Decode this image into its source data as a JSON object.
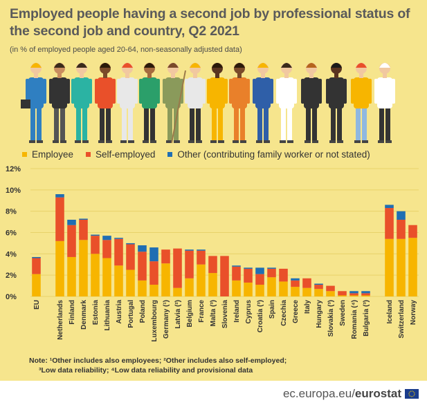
{
  "title": "Employed people having a second job by professional status of the second job and country, Q2 2021",
  "subtitle": "(in % of employed people aged 20-64, non-seasonally adjusted data)",
  "legend": [
    {
      "label": "Employee",
      "color": "#f7b500"
    },
    {
      "label": "Self-employed",
      "color": "#e9502a"
    },
    {
      "label": "Other (contributing family worker or not stated)",
      "color": "#1f6eb3"
    }
  ],
  "notes": {
    "line1": "Note:  ¹Other includes also employees; ²Other includes also self-employed;",
    "line2": "³Low data reliability; ⁴Low data reliability and provisional data"
  },
  "footer": {
    "site": "ec.europa.eu/",
    "brand": "eurostat"
  },
  "chart_data": {
    "type": "bar",
    "stacked": true,
    "categories": [
      "EU",
      "Netherlands",
      "Finland",
      "Denmark",
      "Estonia",
      "Lithuania",
      "Austria",
      "Portugal",
      "Poland",
      "Luxembourg",
      "Germany (¹)",
      "Latvia (²)",
      "Belgium",
      "France",
      "Malta (³)",
      "Slovenia",
      "Ireland",
      "Cyprus",
      "Croatia (³)",
      "Spain",
      "Czechia",
      "Greece",
      "Italy",
      "Hungary",
      "Slovakia (³)",
      "Sweden",
      "Romania (⁴)",
      "Bulgaria (³)",
      "Iceland",
      "Switzerland",
      "Norway"
    ],
    "groups_gap_after": [
      "EU",
      "Bulgaria (³)"
    ],
    "series": [
      {
        "name": "Employee",
        "color": "#f7b500",
        "values": [
          2.1,
          5.2,
          3.7,
          5.3,
          4.0,
          3.6,
          2.9,
          2.5,
          1.5,
          1.1,
          3.1,
          0.8,
          1.7,
          3.0,
          2.2,
          0.0,
          1.5,
          1.3,
          1.1,
          1.8,
          1.4,
          0.9,
          0.8,
          0.7,
          0.5,
          0.1,
          0.1,
          0.1,
          5.4,
          5.4,
          5.5
        ]
      },
      {
        "name": "Self-employed",
        "color": "#e9502a",
        "values": [
          1.5,
          4.1,
          3.0,
          1.9,
          1.7,
          1.7,
          2.5,
          2.4,
          2.7,
          2.2,
          1.3,
          3.7,
          2.6,
          1.3,
          1.6,
          3.8,
          1.3,
          1.3,
          1.0,
          0.8,
          1.2,
          0.6,
          0.9,
          0.4,
          0.5,
          0.4,
          0.2,
          0.2,
          2.9,
          1.8,
          1.2
        ]
      },
      {
        "name": "Other (contributing family worker or not stated)",
        "color": "#1f6eb3",
        "values": [
          0.1,
          0.3,
          0.5,
          0.1,
          0.1,
          0.4,
          0.1,
          0.1,
          0.6,
          1.3,
          0.0,
          0.0,
          0.1,
          0.1,
          0.0,
          0.0,
          0.1,
          0.1,
          0.6,
          0.1,
          0.0,
          0.2,
          0.0,
          0.1,
          0.0,
          0.0,
          0.2,
          0.2,
          0.3,
          0.8,
          0.0
        ]
      }
    ],
    "yticks": [
      "0%",
      "2%",
      "4%",
      "6%",
      "8%",
      "10%",
      "12%"
    ],
    "ylim": [
      0,
      12
    ],
    "grid": true
  }
}
